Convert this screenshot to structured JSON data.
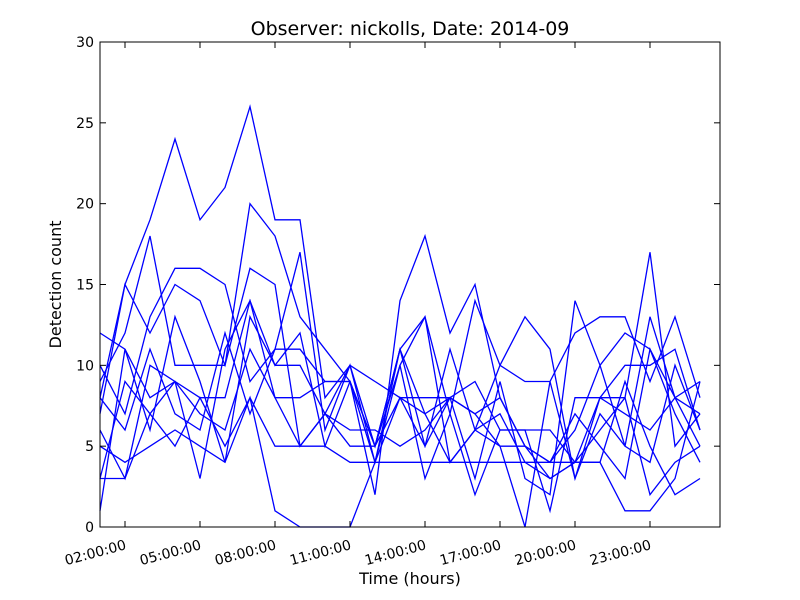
{
  "chart_data": {
    "type": "line",
    "title": "Observer: nickolls, Date: 2014-09",
    "xlabel": "Time (hours)",
    "ylabel": "Detection count",
    "xlim": [
      1.0,
      25.8
    ],
    "ylim": [
      0,
      30
    ],
    "x_ticks": [
      {
        "value": 2,
        "label": "02:00:00"
      },
      {
        "value": 5,
        "label": "05:00:00"
      },
      {
        "value": 8,
        "label": "08:00:00"
      },
      {
        "value": 11,
        "label": "11:00:00"
      },
      {
        "value": 14,
        "label": "14:00:00"
      },
      {
        "value": 17,
        "label": "17:00:00"
      },
      {
        "value": 20,
        "label": "20:00:00"
      },
      {
        "value": 23,
        "label": "23:00:00"
      }
    ],
    "y_ticks": [
      0,
      5,
      10,
      15,
      20,
      25,
      30
    ],
    "grid": false,
    "line_color": "#0000ff",
    "x": [
      1,
      2,
      3,
      4,
      5,
      6,
      7,
      8,
      9,
      10,
      11,
      12,
      13,
      14,
      15,
      16,
      17,
      18,
      19,
      20,
      21,
      22,
      23,
      24,
      25
    ],
    "series": [
      {
        "values": [
          8,
          15,
          19,
          24,
          19,
          21,
          26,
          19,
          19,
          8,
          10,
          5,
          11,
          7,
          8,
          7,
          5,
          5,
          4,
          6,
          10,
          12,
          11,
          8,
          5
        ]
      },
      {
        "values": [
          9,
          12,
          18,
          10,
          10,
          10,
          20,
          18,
          13,
          11,
          9,
          2,
          14,
          18,
          12,
          15,
          8,
          5,
          3,
          4,
          6,
          8,
          17,
          5,
          7
        ]
      },
      {
        "values": [
          7,
          15,
          12,
          15,
          14,
          10,
          16,
          15,
          5,
          7,
          5,
          5,
          10,
          13,
          7,
          14,
          10,
          9,
          9,
          12,
          13,
          13,
          9,
          13,
          8
        ]
      },
      {
        "values": [
          10,
          7,
          13,
          16,
          16,
          15,
          9,
          11,
          17,
          6,
          10,
          4,
          11,
          13,
          4,
          6,
          10,
          13,
          11,
          3,
          7,
          5,
          4,
          10,
          6
        ]
      },
      {
        "values": [
          12,
          11,
          8,
          9,
          8,
          8,
          14,
          10,
          12,
          5,
          9,
          5,
          11,
          5,
          8,
          7,
          8,
          5,
          4,
          7,
          5,
          3,
          11,
          7,
          4
        ]
      },
      {
        "values": [
          1,
          11,
          6,
          13,
          9,
          4,
          13,
          10,
          10,
          7,
          10,
          9,
          8,
          8,
          8,
          9,
          6,
          6,
          6,
          4,
          4,
          9,
          5,
          2,
          3
        ]
      },
      {
        "values": [
          8,
          6,
          11,
          7,
          6,
          12,
          7,
          11,
          11,
          9,
          9,
          4,
          10,
          3,
          7,
          2,
          6,
          6,
          1,
          8,
          8,
          10,
          10,
          11,
          6
        ]
      },
      {
        "values": [
          3,
          9,
          7,
          9,
          7,
          6,
          11,
          8,
          8,
          9,
          9,
          5,
          8,
          7,
          4,
          6,
          7,
          4,
          3,
          4,
          8,
          8,
          2,
          4,
          5
        ]
      },
      {
        "values": [
          6,
          3,
          10,
          9,
          3,
          11,
          14,
          8,
          5,
          7,
          6,
          6,
          5,
          6,
          8,
          3,
          9,
          3,
          2,
          14,
          10,
          5,
          13,
          8,
          7
        ]
      },
      {
        "values": [
          5,
          4,
          5,
          6,
          5,
          4,
          8,
          1,
          0,
          0,
          0,
          4,
          8,
          5,
          11,
          6,
          5,
          0,
          9,
          3,
          8,
          7,
          6,
          8,
          9
        ]
      },
      {
        "values": [
          3,
          3,
          7,
          5,
          8,
          5,
          8,
          5,
          5,
          5,
          4,
          4,
          4,
          4,
          4,
          4,
          4,
          4,
          4,
          4,
          4,
          1,
          1,
          3,
          9
        ]
      }
    ]
  }
}
